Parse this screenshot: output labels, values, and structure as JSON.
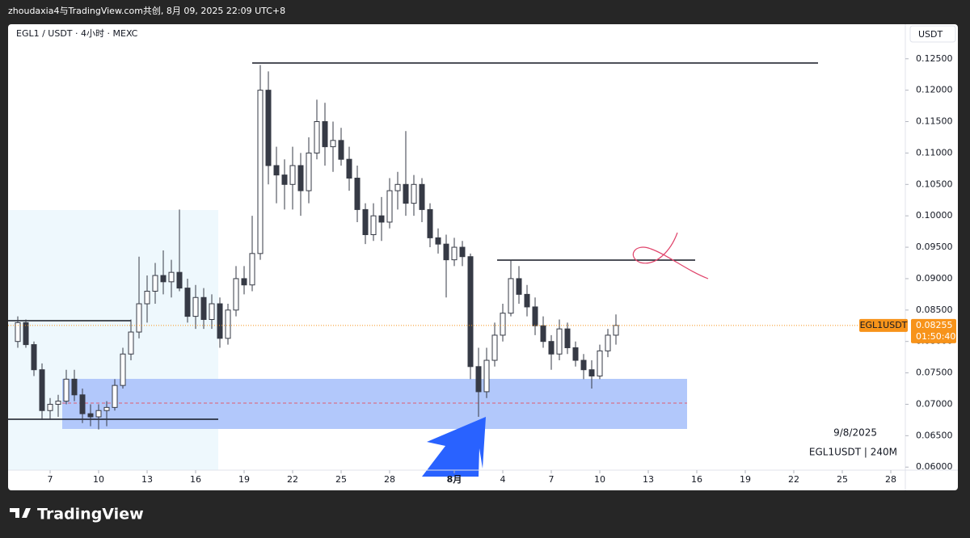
{
  "header": {
    "title": "zhoudaxia4与TradingView.com共创, 8月 09, 2025 22:09 UTC+8"
  },
  "chart_data": {
    "type": "candlestick",
    "title": "EGL1 / USDT · 4小时 · MEXC",
    "y_axis_label": "USDT",
    "color": "#363a45",
    "x": [
      5,
      5.5,
      6,
      6.5,
      7,
      7.5,
      8,
      8.5,
      9,
      9.5,
      10,
      10.5,
      11,
      11.5,
      12,
      12.5,
      13,
      13.5,
      14,
      14.5,
      15,
      15.5,
      16,
      16.5,
      17,
      17.5,
      18,
      18.5,
      19,
      19.5,
      20,
      20.5,
      21,
      21.5,
      22,
      22.5,
      23,
      23.5,
      24,
      24.5,
      25,
      25.5,
      26,
      26.5,
      27,
      27.5,
      28,
      28.5,
      29,
      29.5,
      30,
      30.5,
      31,
      31.5,
      32,
      32.5,
      33,
      33.5,
      34,
      34.5,
      35,
      35.5,
      36,
      36.5,
      37,
      37.5,
      38,
      38.5,
      39,
      39.5,
      40,
      40.5,
      41,
      41.5,
      42
    ],
    "open": [
      0.08,
      0.083,
      0.0795,
      0.0755,
      0.069,
      0.07,
      0.0705,
      0.074,
      0.0715,
      0.0685,
      0.068,
      0.069,
      0.0695,
      0.073,
      0.078,
      0.0815,
      0.086,
      0.088,
      0.0905,
      0.0895,
      0.091,
      0.0885,
      0.084,
      0.087,
      0.0835,
      0.086,
      0.0805,
      0.085,
      0.09,
      0.089,
      0.094,
      0.12,
      0.108,
      0.1065,
      0.105,
      0.108,
      0.104,
      0.11,
      0.115,
      0.111,
      0.112,
      0.109,
      0.106,
      0.101,
      0.097,
      0.1,
      0.099,
      0.104,
      0.105,
      0.102,
      0.105,
      0.101,
      0.0965,
      0.0955,
      0.093,
      0.095,
      0.0935,
      0.076,
      0.072,
      0.077,
      0.081,
      0.0845,
      0.09,
      0.0875,
      0.0855,
      0.0825,
      0.08,
      0.078,
      0.082,
      0.079,
      0.077,
      0.0755,
      0.0745,
      0.0785,
      0.081
    ],
    "high": [
      0.084,
      0.0835,
      0.08,
      0.0765,
      0.071,
      0.0715,
      0.0755,
      0.0755,
      0.0725,
      0.07,
      0.07,
      0.0705,
      0.074,
      0.079,
      0.0835,
      0.0935,
      0.0905,
      0.0925,
      0.0945,
      0.093,
      0.101,
      0.09,
      0.089,
      0.0885,
      0.0875,
      0.087,
      0.086,
      0.092,
      0.092,
      0.1,
      0.124,
      0.123,
      0.111,
      0.109,
      0.111,
      0.11,
      0.1125,
      0.1185,
      0.118,
      0.115,
      0.114,
      0.111,
      0.108,
      0.102,
      0.102,
      0.103,
      0.106,
      0.107,
      0.1135,
      0.1065,
      0.106,
      0.102,
      0.098,
      0.097,
      0.0965,
      0.096,
      0.094,
      0.079,
      0.079,
      0.083,
      0.086,
      0.093,
      0.092,
      0.089,
      0.087,
      0.084,
      0.081,
      0.0835,
      0.083,
      0.08,
      0.078,
      0.077,
      0.0795,
      0.082,
      0.0843
    ],
    "low": [
      0.079,
      0.079,
      0.0745,
      0.0675,
      0.0675,
      0.068,
      0.07,
      0.0705,
      0.067,
      0.0665,
      0.066,
      0.0665,
      0.069,
      0.0725,
      0.077,
      0.0805,
      0.083,
      0.086,
      0.0875,
      0.087,
      0.088,
      0.083,
      0.082,
      0.082,
      0.082,
      0.079,
      0.0795,
      0.084,
      0.0875,
      0.088,
      0.093,
      0.105,
      0.102,
      0.101,
      0.101,
      0.1,
      0.102,
      0.109,
      0.108,
      0.107,
      0.108,
      0.104,
      0.099,
      0.0955,
      0.096,
      0.096,
      0.098,
      0.101,
      0.1,
      0.1,
      0.099,
      0.095,
      0.094,
      0.087,
      0.092,
      0.092,
      0.074,
      0.068,
      0.071,
      0.076,
      0.08,
      0.084,
      0.086,
      0.084,
      0.081,
      0.079,
      0.0755,
      0.077,
      0.078,
      0.076,
      0.074,
      0.0725,
      0.074,
      0.0775,
      0.0795
    ],
    "close": [
      0.083,
      0.0795,
      0.0755,
      0.069,
      0.07,
      0.0705,
      0.074,
      0.0715,
      0.0685,
      0.068,
      0.069,
      0.0695,
      0.073,
      0.078,
      0.0815,
      0.086,
      0.088,
      0.0905,
      0.0895,
      0.091,
      0.0885,
      0.084,
      0.087,
      0.0835,
      0.086,
      0.0805,
      0.085,
      0.09,
      0.089,
      0.094,
      0.12,
      0.108,
      0.1065,
      0.105,
      0.108,
      0.104,
      0.11,
      0.115,
      0.111,
      0.112,
      0.109,
      0.106,
      0.101,
      0.097,
      0.1,
      0.099,
      0.104,
      0.105,
      0.102,
      0.105,
      0.101,
      0.0965,
      0.0955,
      0.093,
      0.095,
      0.0935,
      0.076,
      0.072,
      0.077,
      0.081,
      0.0845,
      0.09,
      0.0875,
      0.0855,
      0.0825,
      0.08,
      0.078,
      0.082,
      0.079,
      0.077,
      0.0755,
      0.0745,
      0.0785,
      0.081,
      0.08255
    ],
    "xlim": [
      4.4,
      59.9
    ],
    "xticks": [
      7,
      10,
      13,
      16,
      19,
      22,
      25,
      28,
      {
        "value": 32,
        "label": "8月"
      },
      {
        "value": 35,
        "label": "4"
      },
      {
        "value": 38,
        "label": "7"
      },
      {
        "value": 41,
        "label": "10"
      },
      {
        "value": 44,
        "label": "13"
      },
      {
        "value": 47,
        "label": "16"
      },
      {
        "value": 50,
        "label": "19"
      },
      {
        "value": 53,
        "label": "22"
      },
      {
        "value": 56,
        "label": "25"
      },
      {
        "value": 59,
        "label": "28"
      }
    ],
    "ylim": [
      0.0563,
      0.1305
    ],
    "yticks": [
      {
        "value": 0.06,
        "label": "0.06000"
      },
      {
        "value": 0.065,
        "label": "0.06500"
      },
      {
        "value": 0.07,
        "label": "0.07000"
      },
      {
        "value": 0.075,
        "label": "0.07500"
      },
      {
        "value": 0.08,
        "label": "0.08000"
      },
      {
        "value": 0.085,
        "label": "0.08500"
      },
      {
        "value": 0.09,
        "label": "0.09000"
      },
      {
        "value": 0.095,
        "label": "0.09500"
      },
      {
        "value": 0.1,
        "label": "0.10000"
      },
      {
        "value": 0.105,
        "label": "0.10500"
      },
      {
        "value": 0.11,
        "label": "0.11000"
      },
      {
        "value": 0.115,
        "label": "0.11500"
      },
      {
        "value": 0.12,
        "label": "0.12000"
      },
      {
        "value": 0.125,
        "label": "0.12500"
      }
    ],
    "grid": false,
    "last_price": {
      "symbol": "EGL1USDT",
      "value": 0.08255,
      "countdown": "01:50:40",
      "color": "#f7931a"
    },
    "annotations": [
      "9/8/2025",
      "EGL1USDT | 240M"
    ]
  },
  "footer": {
    "logo": "TradingView"
  }
}
